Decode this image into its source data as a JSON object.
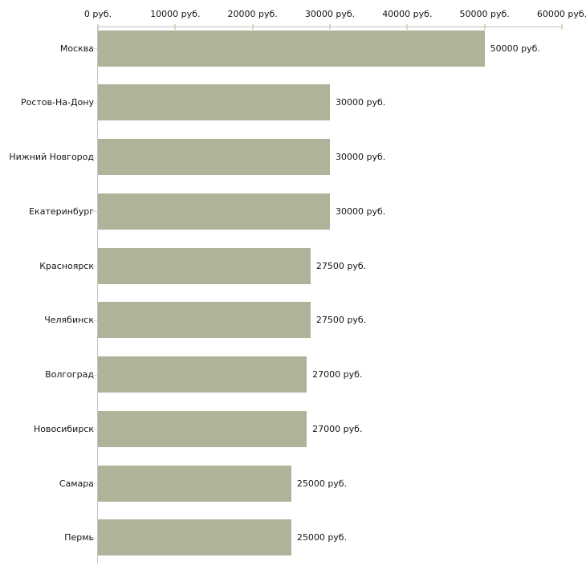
{
  "chart_data": {
    "type": "bar",
    "orientation": "horizontal",
    "title": "",
    "xlabel": "",
    "ylabel": "",
    "unit": "руб.",
    "categories": [
      "Москва",
      "Ростов-На-Дону",
      "Нижний Новгород",
      "Екатеринбург",
      "Красноярск",
      "Челябинск",
      "Волгоград",
      "Новосибирск",
      "Самара",
      "Пермь"
    ],
    "values": [
      50000,
      30000,
      30000,
      30000,
      27500,
      27500,
      27000,
      27000,
      25000,
      25000
    ],
    "value_labels": [
      "50000 руб.",
      "30000 руб.",
      "30000 руб.",
      "30000 руб.",
      "27500 руб.",
      "27500 руб.",
      "27000 руб.",
      "27000 руб.",
      "25000 руб.",
      "25000 руб."
    ],
    "x_ticks": [
      0,
      10000,
      20000,
      30000,
      40000,
      50000,
      60000
    ],
    "x_tick_labels": [
      "0 руб.",
      "10000 руб.",
      "20000 руб.",
      "30000 руб.",
      "40000 руб.",
      "50000 руб.",
      "60000 руб."
    ],
    "xlim": [
      0,
      60000
    ],
    "axis_position": "top",
    "grid": false,
    "legend": false,
    "colors": {
      "bar": "#aeb399",
      "axis_line": "#c3c3c3",
      "tick_mark": "#d9ddc0",
      "text": "#141414"
    }
  }
}
